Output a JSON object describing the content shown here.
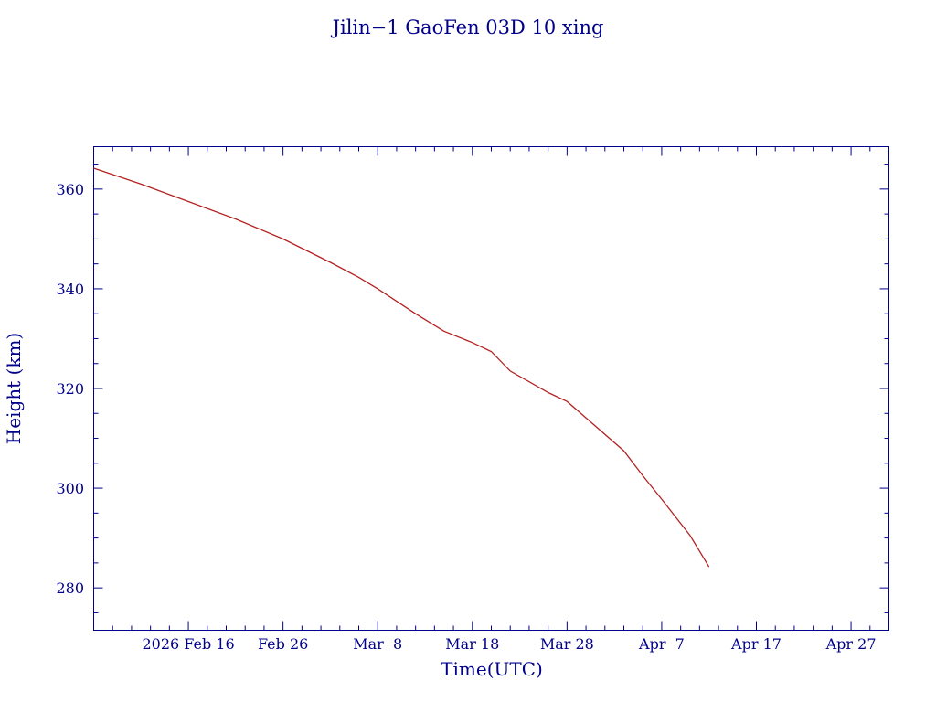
{
  "chart_data": {
    "type": "line",
    "title": "Jilin−1 GaoFen 03D 10 xing",
    "xlabel": "Time(UTC)",
    "ylabel": "Height (km)",
    "x_tick_labels": [
      "2026 Feb 16",
      "Feb 26",
      "Mar  8",
      "Mar 18",
      "Mar 28",
      "Apr  7",
      "Apr 17",
      "Apr 27"
    ],
    "y_tick_labels": [
      "280",
      "300",
      "320",
      "340",
      "360"
    ],
    "x_tick_dates": [
      "2026-02-16",
      "2026-02-26",
      "2026-03-08",
      "2026-03-18",
      "2026-03-28",
      "2026-04-07",
      "2026-04-17",
      "2026-04-27"
    ],
    "y_tick_values": [
      280,
      300,
      320,
      340,
      360
    ],
    "xlim": [
      "2026-02-06",
      "2026-05-01"
    ],
    "ylim": [
      271.5,
      368.5
    ],
    "grid": false,
    "colors": {
      "axes": "#00008b",
      "text": "#00008b",
      "series": "#b22222"
    },
    "series": [
      {
        "x": [
          "2026-02-06",
          "2026-02-11",
          "2026-02-16",
          "2026-02-21",
          "2026-02-26",
          "2026-03-03",
          "2026-03-06",
          "2026-03-08",
          "2026-03-12",
          "2026-03-15",
          "2026-03-18",
          "2026-03-20",
          "2026-03-22",
          "2026-03-26",
          "2026-03-28",
          "2026-04-03",
          "2026-04-05",
          "2026-04-07",
          "2026-04-10",
          "2026-04-12"
        ],
        "y": [
          364.2,
          361.0,
          357.5,
          354.0,
          350.0,
          345.3,
          342.3,
          340.0,
          335.0,
          331.5,
          329.2,
          327.4,
          323.5,
          319.2,
          317.4,
          307.5,
          302.5,
          297.8,
          290.5,
          284.2
        ]
      }
    ]
  }
}
